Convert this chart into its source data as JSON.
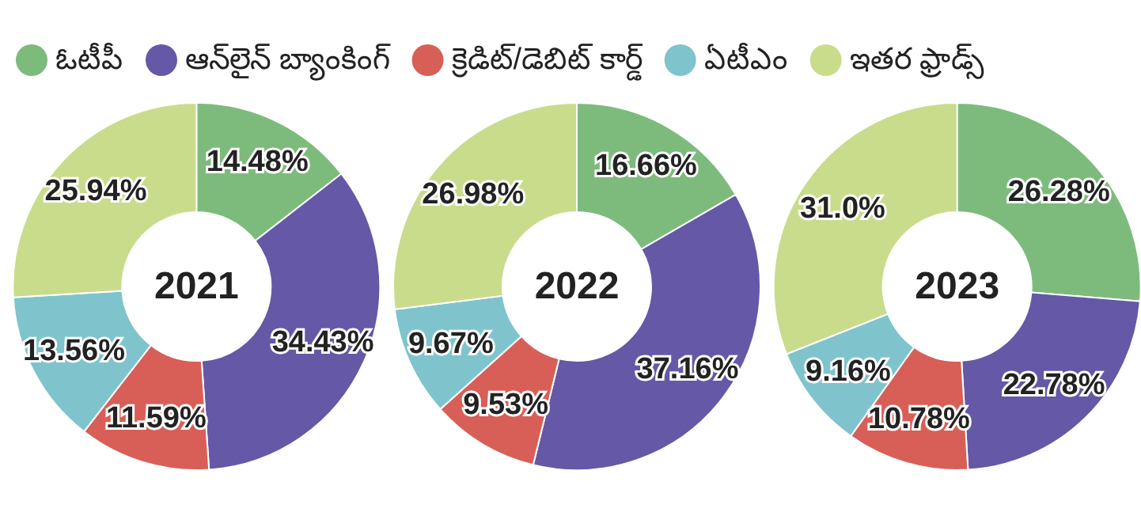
{
  "chart_data": [
    {
      "type": "donut",
      "title": "2021",
      "categories": [
        "ఓటీపీ",
        "ఆన్‌లైన్ బ్యాంకింగ్",
        "క్రెడిట్/డెబిట్ కార్డ్",
        "ఏటీఎం",
        "ఇతర ఫ్రాడ్స్"
      ],
      "values": [
        14.48,
        34.43,
        11.59,
        13.56,
        25.94
      ],
      "value_labels": [
        "14.48%",
        "34.43%",
        "11.59%",
        "13.56%",
        "25.94%"
      ],
      "colors": [
        "#7dbb7d",
        "#6558a6",
        "#d85f57",
        "#7fc4cc",
        "#c9dc8c"
      ],
      "legend": "top"
    },
    {
      "type": "donut",
      "title": "2022",
      "categories": [
        null,
        null,
        null,
        null,
        null
      ],
      "values": [
        16.66,
        37.16,
        9.53,
        9.67,
        26.98
      ],
      "value_labels": [
        "16.66%",
        "37.16%",
        "9.53%",
        "9.67%",
        "26.98%"
      ],
      "colors": [
        "#7dbb7d",
        "#6558a6",
        "#d85f57",
        "#7fc4cc",
        "#c9dc8c"
      ]
    },
    {
      "type": "donut",
      "title": "2023",
      "categories": [
        null,
        null,
        null,
        null,
        null
      ],
      "values": [
        26.28,
        22.78,
        10.78,
        9.16,
        31.0
      ],
      "value_labels": [
        "26.28%",
        "22.78%",
        "10.78%",
        "9.16%",
        "31.0%"
      ],
      "colors": [
        "#7dbb7d",
        "#6558a6",
        "#d85f57",
        "#7fc4cc",
        "#c9dc8c"
      ]
    }
  ]
}
